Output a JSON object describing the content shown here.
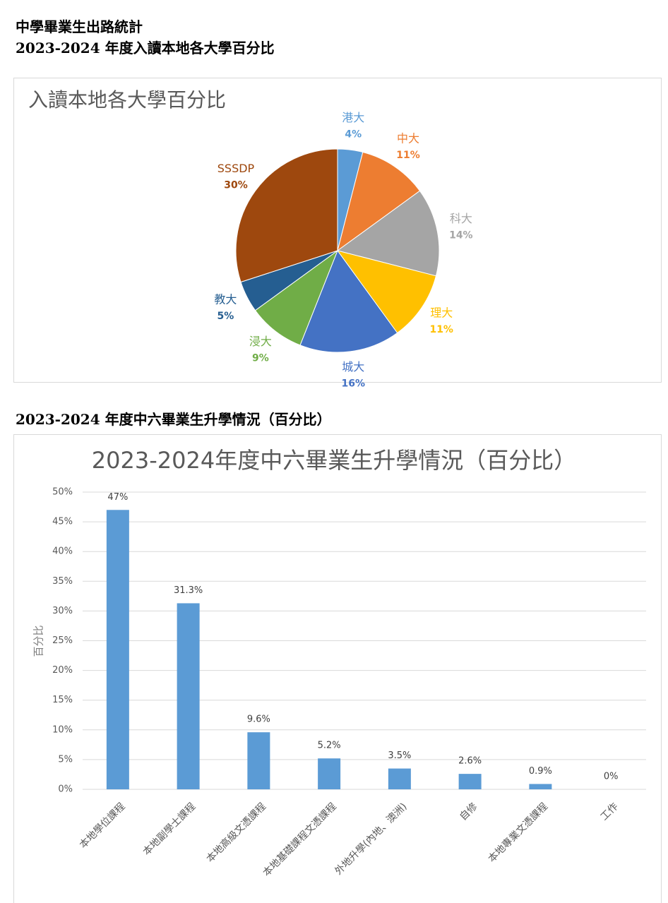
{
  "header": {
    "title": "中學畢業生出路統計",
    "subtitle": "2023-2024 年度入讀本地各大學百分比",
    "section_title": "2023-2024 年度中六畢業生升學情況（百分比）"
  },
  "chart_data": [
    {
      "type": "pie",
      "title": "入讀本地各大學百分比",
      "categories": [
        "港大",
        "中大",
        "科大",
        "理大",
        "城大",
        "浸大",
        "教大",
        "SSSDP"
      ],
      "values": [
        4,
        11,
        14,
        11,
        16,
        9,
        5,
        30
      ],
      "value_labels": [
        "4%",
        "11%",
        "14%",
        "11%",
        "16%",
        "9%",
        "5%",
        "30%"
      ],
      "colors": [
        "#5b9bd5",
        "#ed7d31",
        "#a5a5a5",
        "#ffc000",
        "#4472c4",
        "#70ad47",
        "#255e91",
        "#9e480e"
      ]
    },
    {
      "type": "bar",
      "title": "2023-2024年度中六畢業生升學情況（百分比）",
      "y_label": "百分比",
      "categories": [
        "本地學位課程",
        "本地副學士課程",
        "本地高級文憑課程",
        "本地基礎課程文憑課程",
        "外地升學(內地、澳洲)",
        "自修",
        "本地專業文憑課程",
        "工作"
      ],
      "values": [
        47,
        31.3,
        9.6,
        5.2,
        3.5,
        2.6,
        0.9,
        0
      ],
      "value_labels": [
        "47%",
        "31.3%",
        "9.6%",
        "5.2%",
        "3.5%",
        "2.6%",
        "0.9%",
        "0%"
      ],
      "color": "#5b9bd5",
      "ylim": [
        0,
        50
      ],
      "yticks": [
        {
          "value": 0,
          "label": "0%"
        },
        {
          "value": 5,
          "label": "5%"
        },
        {
          "value": 10,
          "label": "10%"
        },
        {
          "value": 15,
          "label": "15%"
        },
        {
          "value": 20,
          "label": "20%"
        },
        {
          "value": 25,
          "label": "25%"
        },
        {
          "value": 30,
          "label": "30%"
        },
        {
          "value": 35,
          "label": "35%"
        },
        {
          "value": 40,
          "label": "40%"
        },
        {
          "value": 45,
          "label": "45%"
        },
        {
          "value": 50,
          "label": "50%"
        }
      ],
      "grid": true
    }
  ]
}
